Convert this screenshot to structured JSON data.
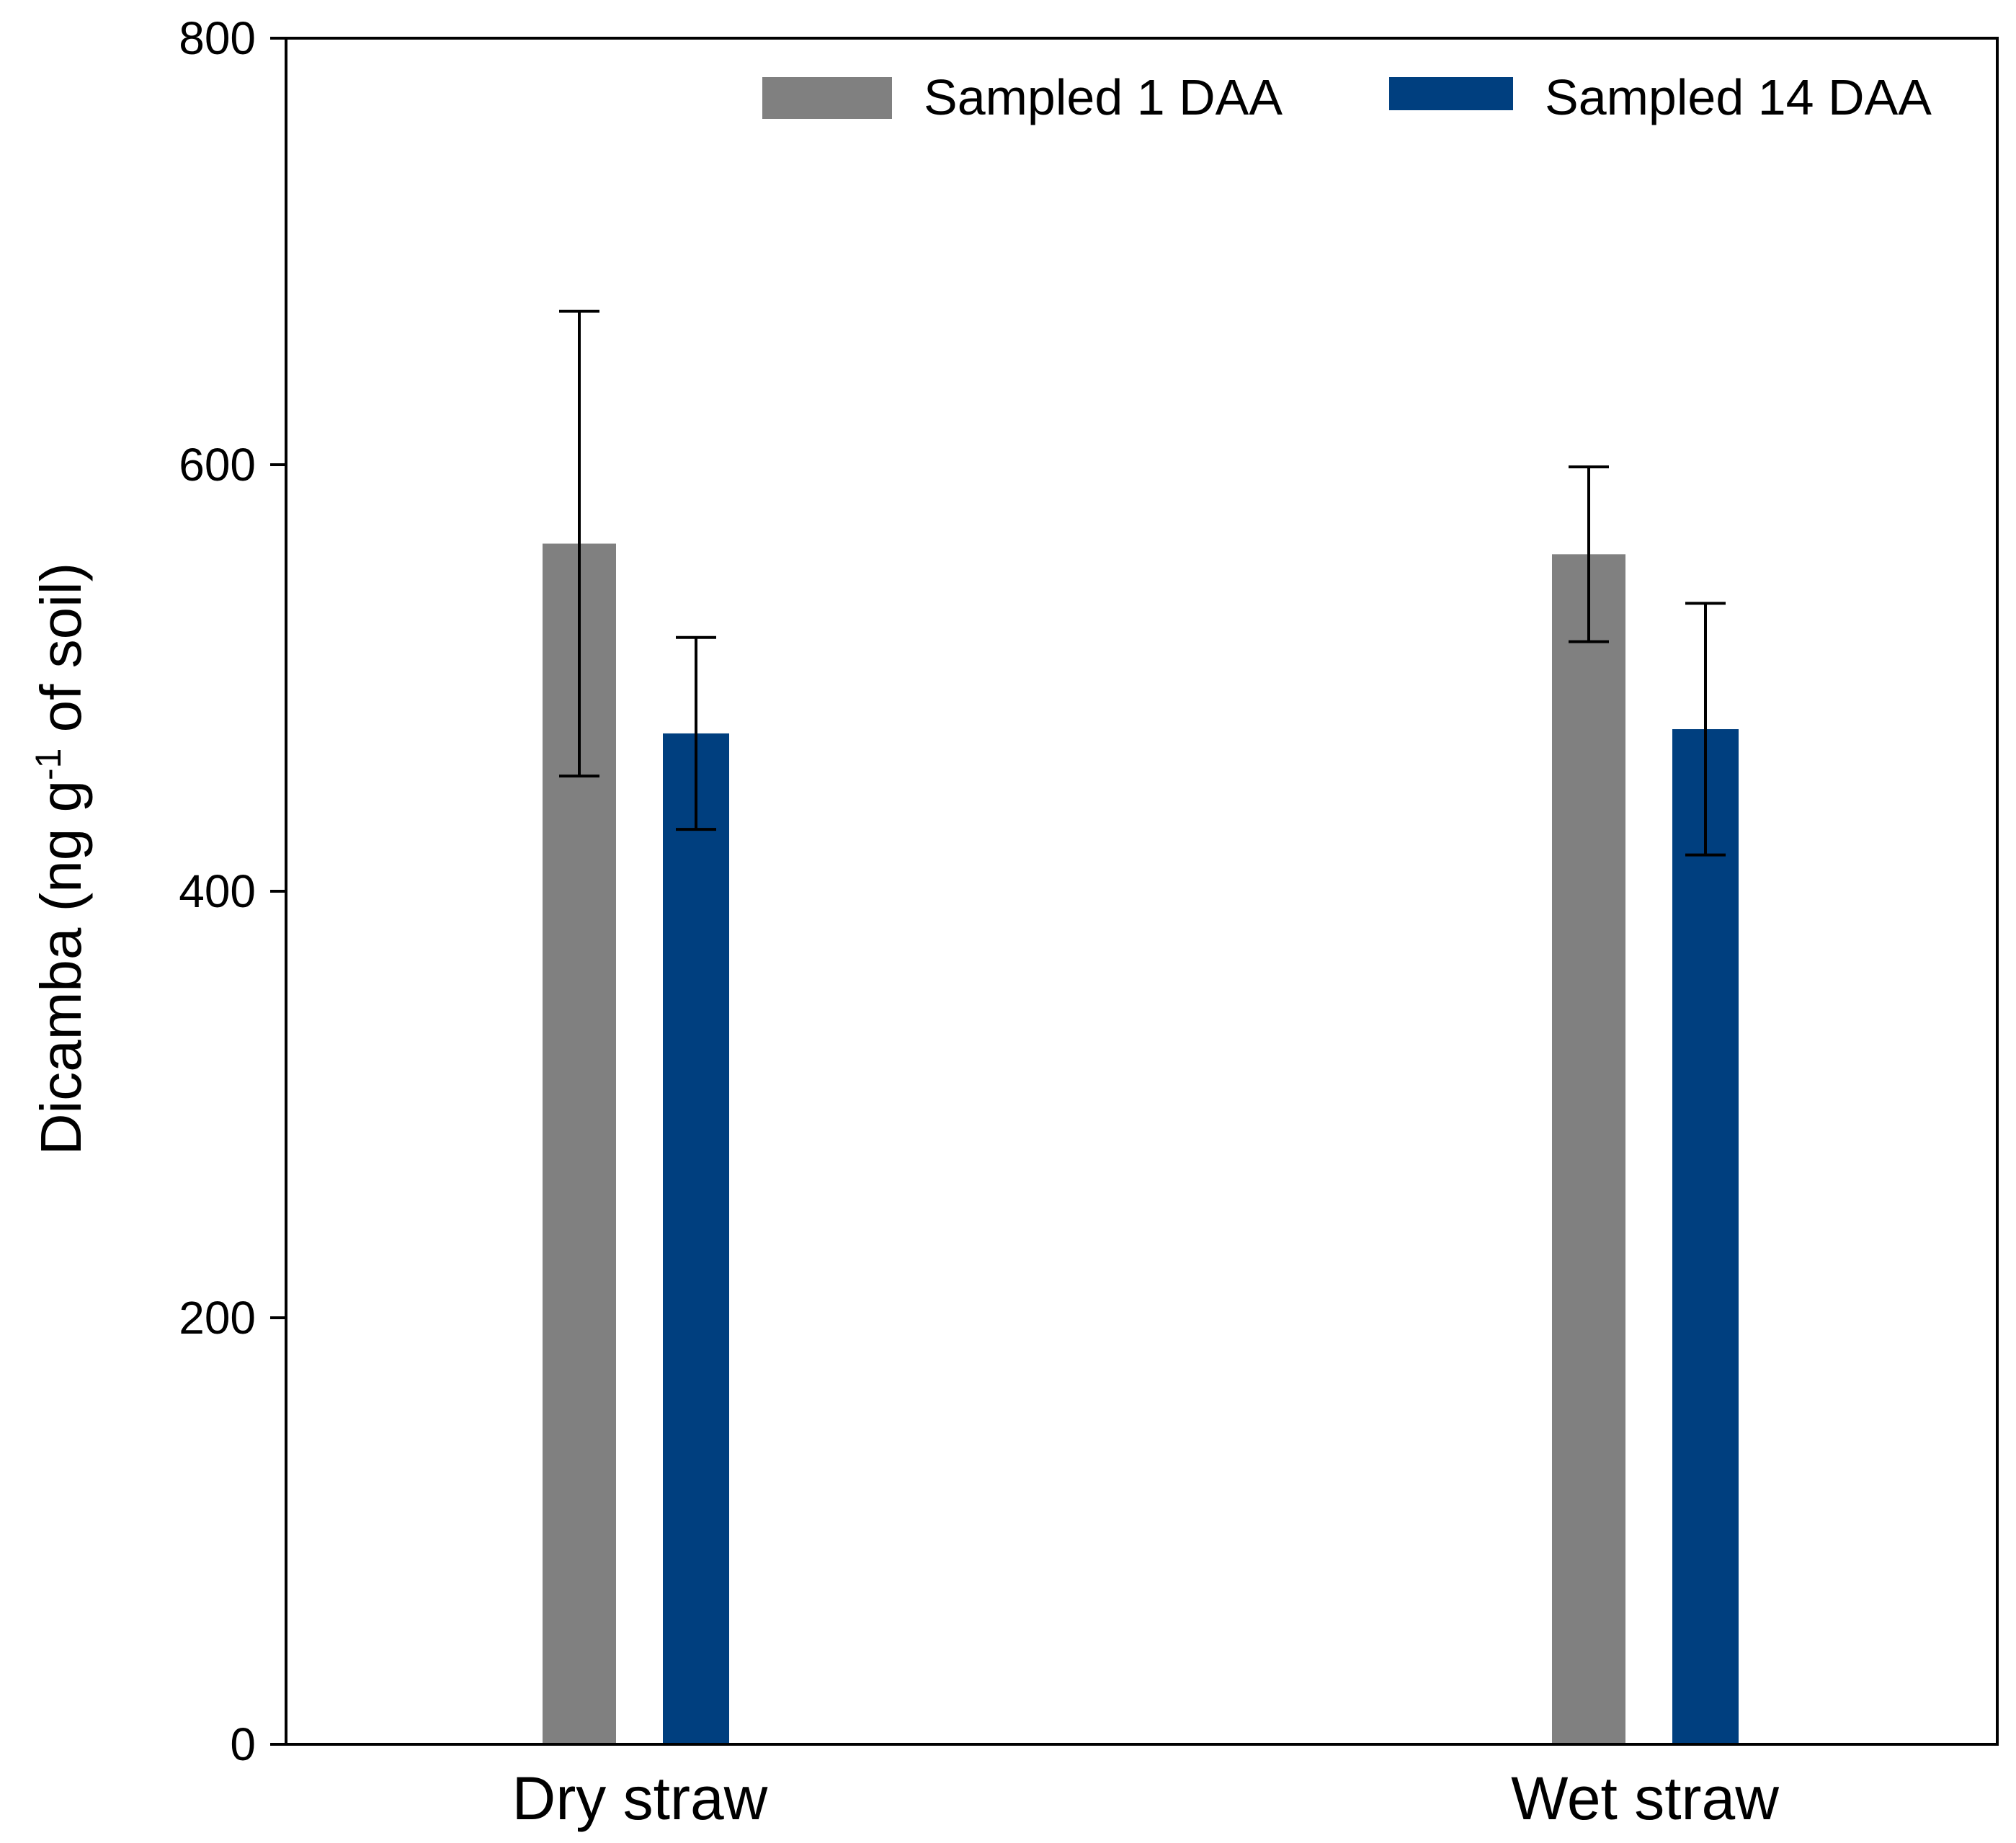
{
  "chart_data": {
    "type": "bar",
    "title": "",
    "xlabel": "",
    "ylabel": {
      "main": "Dicamba (ng g",
      "superscript": "-1",
      "rest": " of soil)"
    },
    "categories": [
      "Dry straw",
      "Wet straw"
    ],
    "ylim": [
      0,
      800
    ],
    "yticks": [
      0,
      200,
      400,
      600,
      800
    ],
    "grid": false,
    "legend_position": "top-right",
    "series": [
      {
        "name": "Sampled 1 DAA",
        "color": "#808080",
        "values": [
          563,
          558
        ],
        "errors": [
          109,
          41
        ]
      },
      {
        "name": "Sampled 14 DAA",
        "color": "#003f7f",
        "values": [
          474,
          476
        ],
        "errors": [
          45,
          59
        ]
      }
    ]
  }
}
